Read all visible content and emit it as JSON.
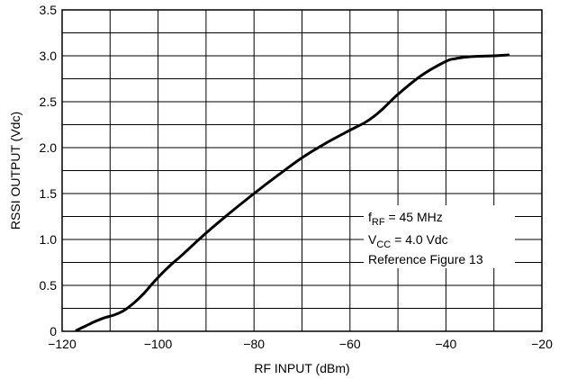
{
  "chart_data": {
    "type": "line",
    "xlabel": "RF INPUT (dBm)",
    "ylabel": "RSSI OUTPUT (Vdc)",
    "xlim": [
      -120,
      -20
    ],
    "ylim": [
      0,
      3.5
    ],
    "x_ticks": [
      -120,
      -100,
      -80,
      -60,
      -40,
      -20
    ],
    "x_tick_labels": [
      "−120",
      "−100",
      "−80",
      "−60",
      "−40",
      "−20"
    ],
    "y_ticks": [
      0,
      0.5,
      1.0,
      1.5,
      2.0,
      2.5,
      3.0,
      3.5
    ],
    "y_tick_labels": [
      "0",
      "0.5",
      "1.0",
      "1.5",
      "2.0",
      "2.5",
      "3.0",
      "3.5"
    ],
    "grid": true,
    "series": [
      {
        "x": [
          -117,
          -115,
          -113,
          -111,
          -109,
          -107,
          -105,
          -103,
          -101,
          -99,
          -97,
          -95,
          -90,
          -85,
          -80,
          -75,
          -70,
          -65,
          -60,
          -57,
          -55,
          -53,
          -50,
          -45,
          -40,
          -38,
          -35,
          -30,
          -27
        ],
        "y": [
          0.01,
          0.06,
          0.11,
          0.15,
          0.18,
          0.23,
          0.31,
          0.41,
          0.53,
          0.64,
          0.74,
          0.83,
          1.07,
          1.29,
          1.5,
          1.7,
          1.89,
          2.05,
          2.19,
          2.27,
          2.34,
          2.43,
          2.58,
          2.79,
          2.94,
          2.97,
          2.99,
          3.0,
          3.01
        ]
      }
    ],
    "annotations": [
      {
        "main": "f",
        "sub": "RF",
        "rest": " = 45 MHz"
      },
      {
        "main": "V",
        "sub": "CC",
        "rest": " = 4.0 Vdc"
      },
      {
        "main": "Reference Figure 13",
        "sub": "",
        "rest": ""
      }
    ]
  }
}
